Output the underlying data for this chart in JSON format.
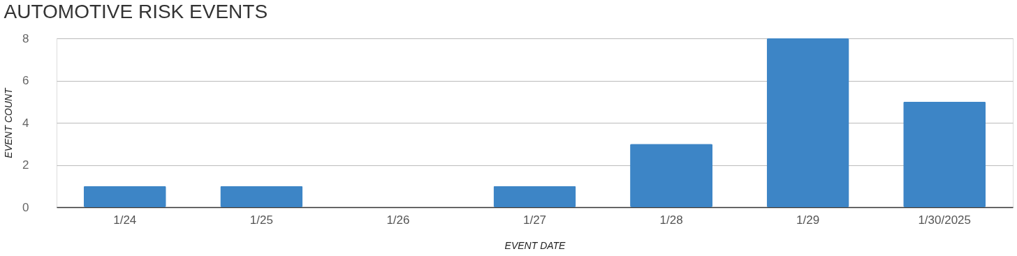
{
  "chart_data": {
    "type": "bar",
    "title": "AUTOMOTIVE RISK EVENTS",
    "xlabel": "EVENT DATE",
    "ylabel": "EVENT COUNT",
    "categories": [
      "1/24",
      "1/25",
      "1/26",
      "1/27",
      "1/28",
      "1/29",
      "1/30/2025"
    ],
    "values": [
      1,
      1,
      0,
      1,
      3,
      8,
      5
    ],
    "color": "#3d85c6",
    "ylim": [
      0,
      8
    ],
    "yticks": [
      0,
      2,
      4,
      6,
      8
    ],
    "grid": "y"
  }
}
